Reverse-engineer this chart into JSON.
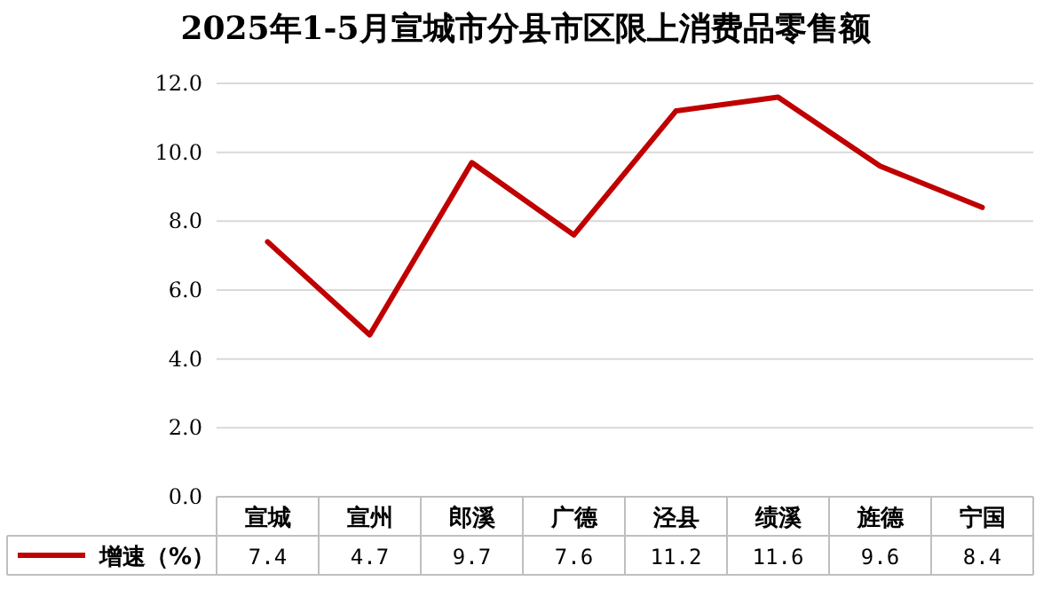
{
  "chart_data": {
    "type": "line",
    "title": "2025年1-5月宣城市分县市区限上消费品零售额",
    "categories": [
      "宣城",
      "宣州",
      "郎溪",
      "广德",
      "泾县",
      "绩溪",
      "旌德",
      "宁国"
    ],
    "series": [
      {
        "name": "增速（%）",
        "color": "#c00000",
        "values": [
          7.4,
          4.7,
          9.7,
          7.6,
          11.2,
          11.6,
          9.6,
          8.4
        ]
      }
    ],
    "ylim": [
      0,
      12
    ],
    "yticks": [
      {
        "value": 0,
        "label": "0.0"
      },
      {
        "value": 2,
        "label": "2.0"
      },
      {
        "value": 4,
        "label": "4.0"
      },
      {
        "value": 6,
        "label": "6.0"
      },
      {
        "value": 8,
        "label": "8.0"
      },
      {
        "value": 10,
        "label": "10.0"
      },
      {
        "value": 12,
        "label": "12.0"
      }
    ],
    "grid": "y",
    "data_labels": true,
    "legend": "bottom",
    "marker": "none",
    "line_style": "solid"
  }
}
